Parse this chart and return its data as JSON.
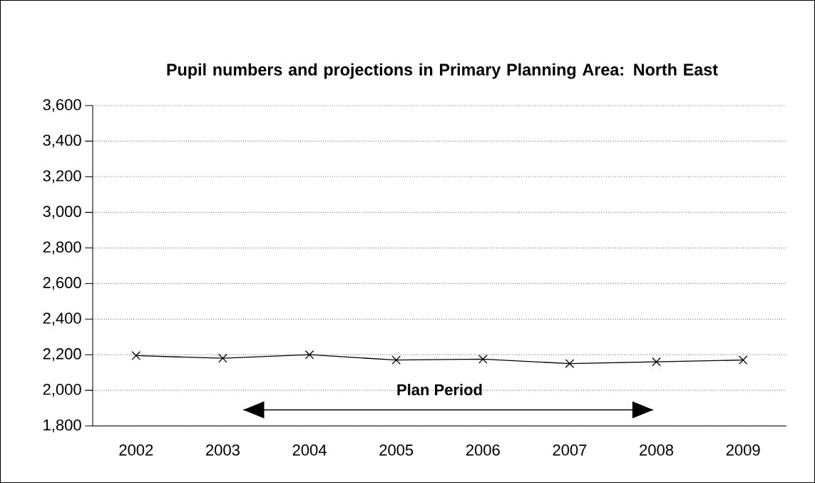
{
  "chart_data": {
    "type": "line",
    "title": "Pupil numbers and projections in Primary Planning Area: North East",
    "categories": [
      "2002",
      "2003",
      "2004",
      "2005",
      "2006",
      "2007",
      "2008",
      "2009"
    ],
    "series": [
      {
        "color": "#000000",
        "values": [
          2195,
          2180,
          2200,
          2170,
          2175,
          2150,
          2160,
          2170
        ]
      }
    ],
    "ylim": [
      1800,
      3600
    ],
    "yticks": [
      {
        "value": 1800,
        "label": "1,800"
      },
      {
        "value": 2000,
        "label": "2,000"
      },
      {
        "value": 2200,
        "label": "2,200"
      },
      {
        "value": 2400,
        "label": "2,400"
      },
      {
        "value": 2600,
        "label": "2,600"
      },
      {
        "value": 2800,
        "label": "2,800"
      },
      {
        "value": 3000,
        "label": "3,000"
      },
      {
        "value": 3200,
        "label": "3,200"
      },
      {
        "value": 3400,
        "label": "3,400"
      },
      {
        "value": 3600,
        "label": "3,600"
      }
    ],
    "grid": "y",
    "marker": "cross",
    "line_style": "solid",
    "annotations": [
      "Plan Period"
    ]
  }
}
